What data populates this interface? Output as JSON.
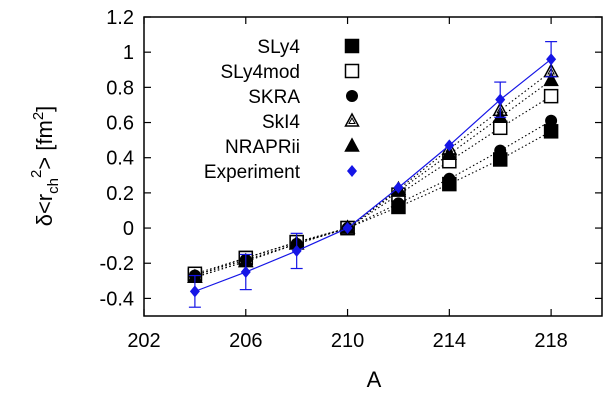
{
  "chart_data": {
    "type": "scatter",
    "title": "",
    "xlabel": "A",
    "ylabel": {
      "prefix": "δ<r",
      "sub": "ch",
      "sup": "2",
      "suffix": "> [fm",
      "unit_sup": "2",
      "close": "]"
    },
    "xlim": [
      202,
      220
    ],
    "ylim": [
      -0.5,
      1.2
    ],
    "xticks": [
      202,
      206,
      210,
      214,
      218
    ],
    "yticks": [
      1.2,
      1,
      0.8,
      0.6,
      0.4,
      0.2,
      0,
      -0.2,
      -0.4
    ],
    "grid": false,
    "legend": "top-left",
    "series": [
      {
        "name": "SLy4",
        "marker": "square-filled",
        "color": "#000000",
        "line": "dotted",
        "x": [
          204,
          206,
          208,
          210,
          212,
          214,
          216,
          218
        ],
        "y": [
          -0.27,
          -0.17,
          -0.08,
          0.0,
          0.12,
          0.25,
          0.39,
          0.55
        ]
      },
      {
        "name": "SLy4mod",
        "marker": "square-open",
        "color": "#000000",
        "line": "dotted",
        "x": [
          204,
          206,
          208,
          210,
          212,
          214,
          216,
          218
        ],
        "y": [
          -0.26,
          -0.17,
          -0.08,
          0.0,
          0.19,
          0.38,
          0.57,
          0.75
        ]
      },
      {
        "name": "SKRA",
        "marker": "circle-filled",
        "color": "#000000",
        "line": "dotted",
        "x": [
          204,
          206,
          208,
          210,
          212,
          214,
          216,
          218
        ],
        "y": [
          -0.27,
          -0.18,
          -0.09,
          0.0,
          0.14,
          0.28,
          0.44,
          0.61
        ]
      },
      {
        "name": "SkI4",
        "marker": "triangle-open",
        "color": "#000000",
        "line": "dotted",
        "x": [
          204,
          206,
          208,
          210,
          212,
          214,
          216,
          218
        ],
        "y": [
          -0.28,
          -0.19,
          -0.09,
          0.0,
          0.22,
          0.45,
          0.67,
          0.89
        ]
      },
      {
        "name": "NRAPRii",
        "marker": "triangle-filled",
        "color": "#000000",
        "line": "dotted",
        "x": [
          204,
          206,
          208,
          210,
          212,
          214,
          216,
          218
        ],
        "y": [
          -0.28,
          -0.19,
          -0.09,
          0.0,
          0.21,
          0.42,
          0.63,
          0.84
        ]
      },
      {
        "name": "Experiment",
        "marker": "diamond-filled",
        "color": "#1515e6",
        "line": "solid",
        "x": [
          204,
          206,
          208,
          210,
          212,
          214,
          216,
          218
        ],
        "y": [
          -0.36,
          -0.25,
          -0.13,
          0.0,
          0.23,
          0.47,
          0.73,
          0.96
        ],
        "yerr": [
          0.09,
          0.1,
          0.1,
          0.0,
          0.0,
          0.0,
          0.1,
          0.1
        ]
      }
    ]
  }
}
